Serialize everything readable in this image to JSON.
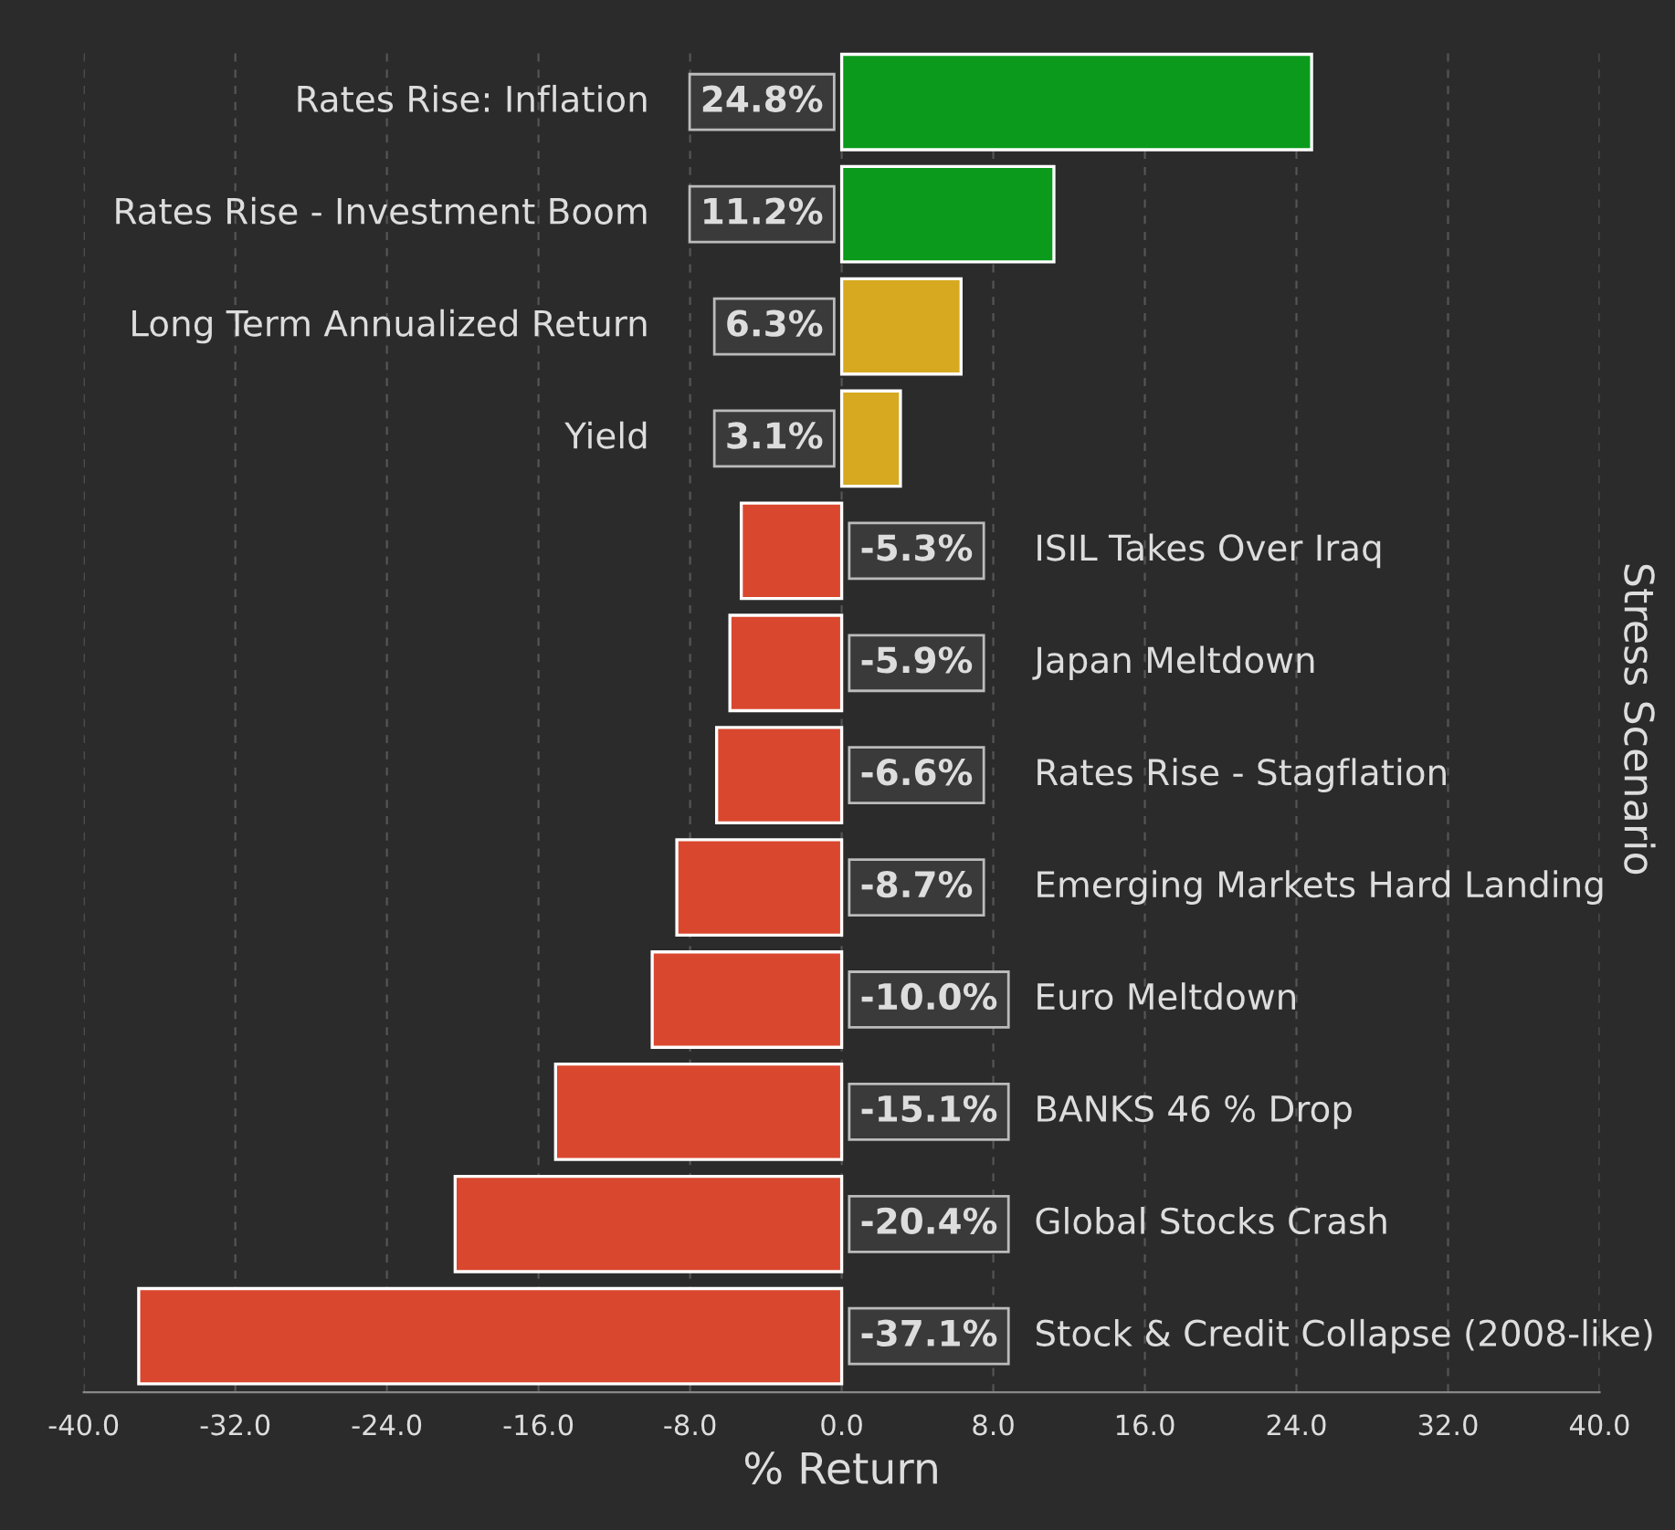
{
  "chart_data": {
    "type": "bar",
    "orientation": "horizontal",
    "xlabel": "% Return",
    "ylabel": "Stress Scenario",
    "categories": [
      "Rates Rise: Inflation",
      "Rates Rise - Investment Boom",
      "Long Term Annualized Return",
      "Yield",
      "ISIL Takes Over Iraq",
      "Japan Meltdown",
      "Rates Rise - Stagflation",
      "Emerging Markets Hard Landing",
      "Euro Meltdown",
      "BANKS 46 % Drop",
      "Global Stocks Crash",
      "Stock & Credit Collapse (2008-like)"
    ],
    "values": [
      24.8,
      11.2,
      6.3,
      3.1,
      -5.3,
      -5.9,
      -6.6,
      -8.7,
      -10.0,
      -15.1,
      -20.4,
      -37.1
    ],
    "value_labels": [
      "24.8%",
      "11.2%",
      "6.3%",
      "3.1%",
      "-5.3%",
      "-5.9%",
      "-6.6%",
      "-8.7%",
      "-10.0%",
      "-15.1%",
      "-20.4%",
      "-37.1%"
    ],
    "colors": [
      "#0b9a1c",
      "#0b9a1c",
      "#d6a920",
      "#d6a920",
      "#d9472f",
      "#d9472f",
      "#d9472f",
      "#d9472f",
      "#d9472f",
      "#d9472f",
      "#d9472f",
      "#d9472f"
    ],
    "xlim": [
      -40,
      40
    ],
    "xticks": [
      {
        "value": -40,
        "label": "-40.0"
      },
      {
        "value": -32,
        "label": "-32.0"
      },
      {
        "value": -24,
        "label": "-24.0"
      },
      {
        "value": -16,
        "label": "-16.0"
      },
      {
        "value": -8,
        "label": "-8.0"
      },
      {
        "value": 0,
        "label": "0.0"
      },
      {
        "value": 8,
        "label": "8.0"
      },
      {
        "value": 16,
        "label": "16.0"
      },
      {
        "value": 24,
        "label": "24.0"
      },
      {
        "value": 32,
        "label": "32.0"
      },
      {
        "value": 40,
        "label": "40.0"
      }
    ],
    "grid": "x"
  }
}
